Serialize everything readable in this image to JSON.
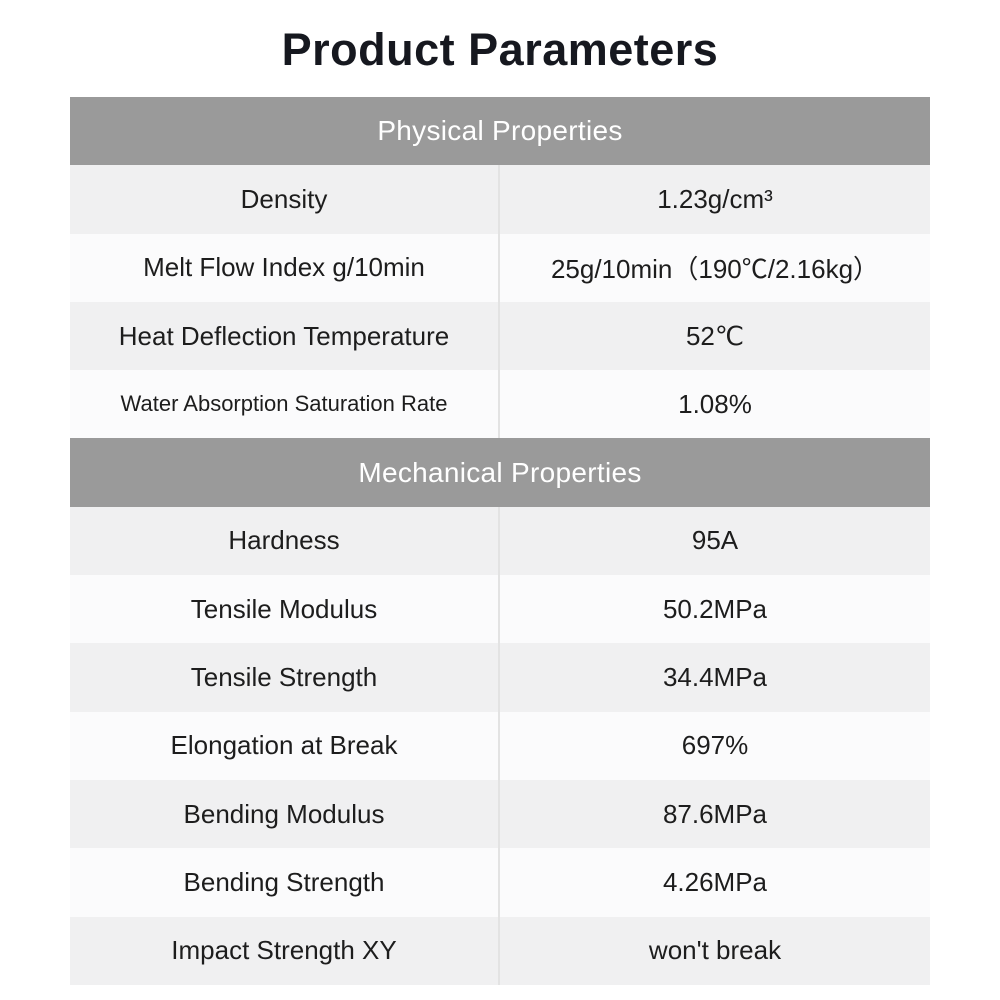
{
  "page": {
    "title": "Product Parameters"
  },
  "table": {
    "sections": [
      {
        "header": "Physical Properties",
        "rows": [
          {
            "name": "Density",
            "value": "1.23g/cm³"
          },
          {
            "name": "Melt Flow Index g/10min",
            "value": "25g/10min（190℃/2.16kg）"
          },
          {
            "name": "Heat Deflection Temperature",
            "value": "52℃"
          },
          {
            "name": "Water Absorption Saturation Rate",
            "value": "1.08%"
          }
        ]
      },
      {
        "header": "Mechanical Properties",
        "rows": [
          {
            "name": "Hardness",
            "value": "95A"
          },
          {
            "name": "Tensile Modulus",
            "value": "50.2MPa"
          },
          {
            "name": "Tensile Strength",
            "value": "34.4MPa"
          },
          {
            "name": "Elongation at Break",
            "value": "697%"
          },
          {
            "name": "Bending Modulus",
            "value": "87.6MPa"
          },
          {
            "name": "Bending Strength",
            "value": "4.26MPa"
          },
          {
            "name": "Impact Strength XY",
            "value": "won't break"
          }
        ]
      }
    ]
  },
  "colors": {
    "title_text": "#16181f",
    "section_header_bg": "#9a9a9a",
    "section_header_text": "#ffffff",
    "row_bg": "#fbfbfc",
    "row_alt_bg": "#f0f0f1",
    "body_text": "#1d1d1d",
    "column_divider": "#e3e3e3"
  }
}
